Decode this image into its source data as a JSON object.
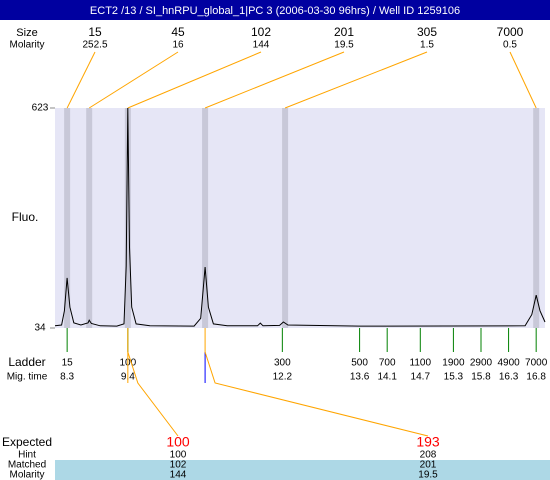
{
  "chart_data": {
    "type": "line",
    "title": "ECT2 /13 / SI_hnRPU_global_1|PC 3 (2006-03-30 96hrs) / Well ID 1259106",
    "y_label": "Fluo.",
    "ylim": [
      34,
      623
    ],
    "yticks": [
      623,
      34
    ],
    "xlim": [
      8.08,
      16.96
    ],
    "color": "#000000",
    "x": [
      8.08,
      8.2,
      8.25,
      8.3,
      8.35,
      8.42,
      8.55,
      8.68,
      8.7,
      8.74,
      8.9,
      9.2,
      9.33,
      9.37,
      9.4,
      9.43,
      9.47,
      9.55,
      9.8,
      10.6,
      10.72,
      10.8,
      10.86,
      10.95,
      11.2,
      11.75,
      11.8,
      11.85,
      12.15,
      12.22,
      12.3,
      13.6,
      14.1,
      16.6,
      16.72,
      16.8,
      16.87,
      16.96
    ],
    "values": [
      40,
      42,
      80,
      168,
      90,
      48,
      42,
      48,
      55,
      46,
      40,
      39,
      45,
      200,
      623,
      250,
      90,
      45,
      40,
      39,
      60,
      197,
      90,
      45,
      40,
      40,
      47,
      40,
      41,
      50,
      42,
      39,
      39,
      40,
      70,
      122,
      80,
      50
    ],
    "peaks": {
      "size_label": "Size",
      "molarity_label": "Molarity",
      "sizes": [
        15,
        45,
        102,
        201,
        305,
        7000
      ],
      "molarities": [
        252.5,
        16,
        144,
        19.5,
        1.5,
        0.5
      ],
      "times": [
        8.3,
        8.7,
        9.4,
        10.8,
        12.25,
        16.8
      ]
    },
    "ladder": {
      "label": "Ladder",
      "time_label": "Mig. time",
      "sizes": [
        15,
        100,
        300,
        500,
        700,
        1100,
        1900,
        2900,
        4900,
        7000
      ],
      "times": [
        8.3,
        9.4,
        12.2,
        13.6,
        14.1,
        14.7,
        15.3,
        15.8,
        16.3,
        16.8
      ]
    },
    "table": {
      "expected": {
        "label": "Expected",
        "values": [
          100,
          193
        ]
      },
      "hint": {
        "label": "Hint",
        "values": [
          100,
          208
        ]
      },
      "matched": {
        "label": "Matched",
        "values": [
          102,
          201
        ]
      },
      "molarity": {
        "label": "Molarity",
        "values": [
          144,
          19.5
        ]
      }
    }
  }
}
